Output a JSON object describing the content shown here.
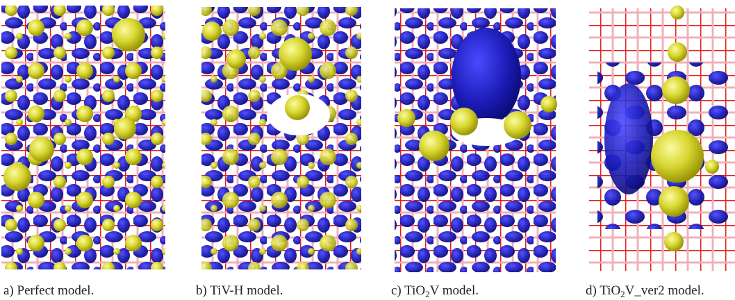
{
  "panels": [
    {
      "caption": [
        "a) Perfect model."
      ]
    },
    {
      "caption": [
        "b) TiV-H model."
      ]
    },
    {
      "caption": [
        "c) TiO",
        "2",
        "V model."
      ]
    },
    {
      "caption": [
        "d) TiO",
        "2",
        "V_ver2 model."
      ]
    }
  ]
}
